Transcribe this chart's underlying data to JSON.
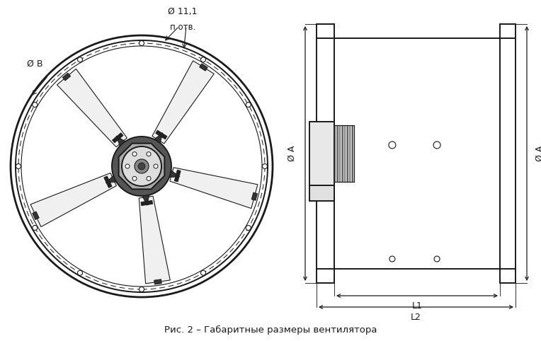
{
  "title": "Рис. 2 – Габаритные размеры вентилятора",
  "label_phi11": "Ø 11,1",
  "label_n_otv": "п отв.",
  "label_phiB": "Ø В",
  "label_phiA_left": "Ø A",
  "label_phiA_right": "Ø A",
  "label_L1": "L1",
  "label_L2": "L2",
  "line_color": "#1a1a1a",
  "dim_color": "#1a1a1a",
  "label_color_orange": "#c8860a",
  "background_color": "#ffffff"
}
